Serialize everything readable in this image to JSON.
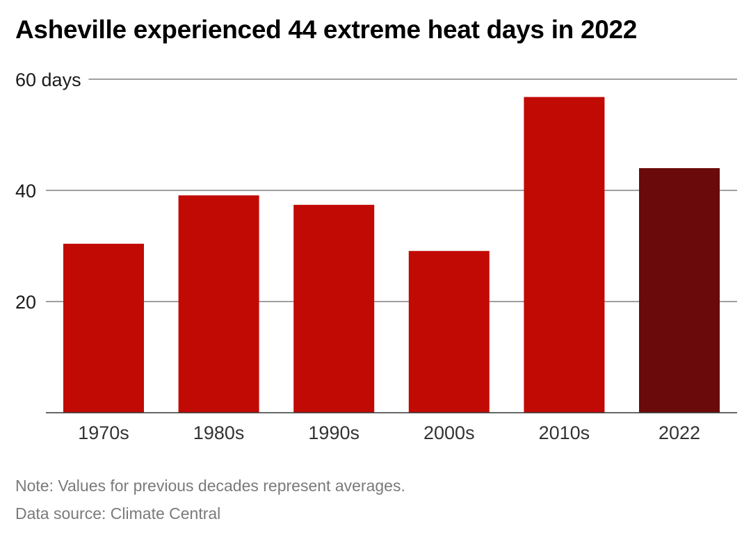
{
  "title": "Asheville experienced 44 extreme heat days in 2022",
  "note": "Note: Values for previous decades represent averages.",
  "source": "Data source: Climate Central",
  "colors": {
    "bar": "#c10a04",
    "highlight": "#6b0a0b",
    "grid": "#666666",
    "axis": "#333333"
  },
  "chart_data": {
    "type": "bar",
    "categories": [
      "1970s",
      "1980s",
      "1990s",
      "2000s",
      "2010s",
      "2022"
    ],
    "values": [
      30.4,
      39.1,
      37.4,
      29.1,
      56.8,
      44
    ],
    "highlight_index": 5,
    "ylim": [
      0,
      60
    ],
    "yticks": [
      20,
      40,
      60
    ],
    "ytick_labels": [
      "20",
      "40",
      "60 days"
    ],
    "grid": true,
    "xlabel": "",
    "ylabel": ""
  }
}
